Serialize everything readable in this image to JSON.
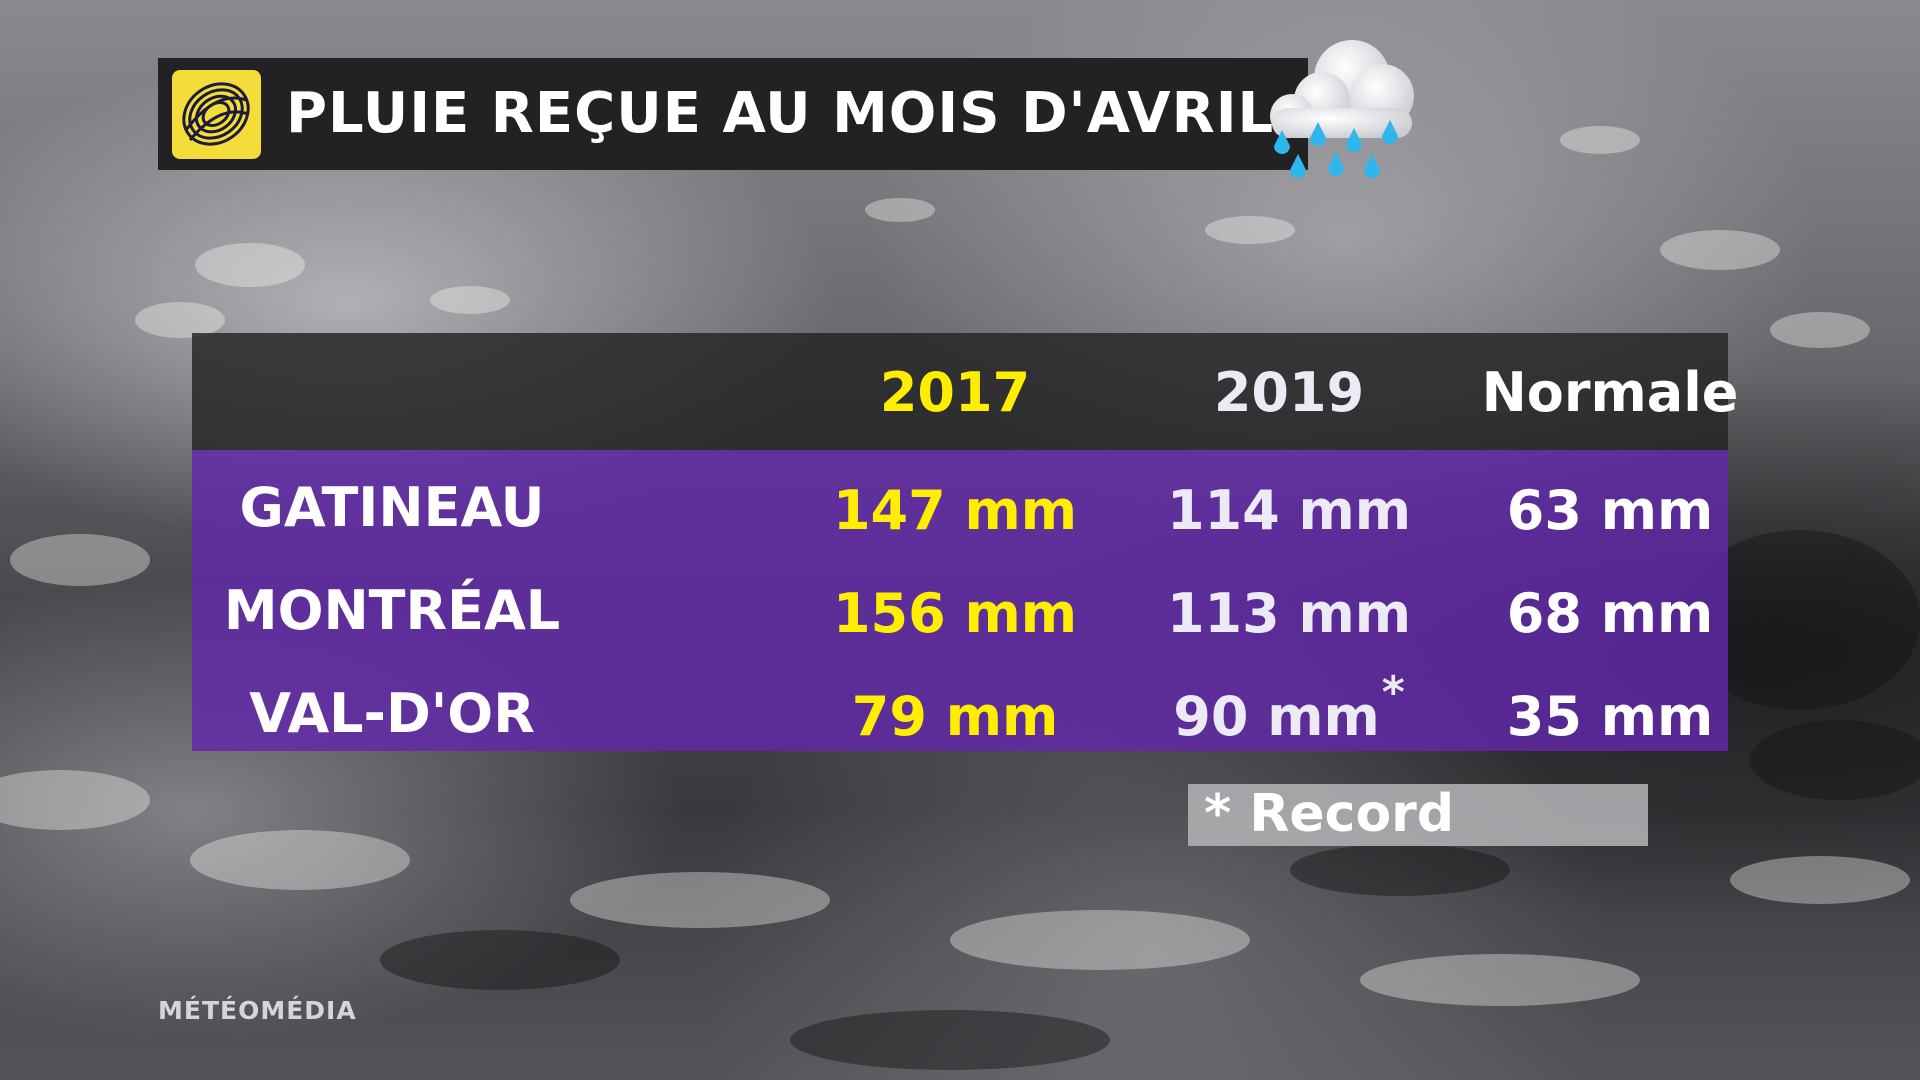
{
  "title": "PLUIE REÇUE AU MOIS D'AVRIL",
  "brand": "MÉTÉOMÉDIA",
  "legend": {
    "marker": "*",
    "label": "Record"
  },
  "colors": {
    "highlight_year": "#ffee00",
    "table_body": "#6228aa",
    "header": "#232326",
    "logo": "#f4dc3a"
  },
  "icons": {
    "logo": "meteomedia-logo-icon",
    "weather": "rain-cloud-icon"
  },
  "chart_data": {
    "type": "table",
    "title": "PLUIE REÇUE AU MOIS D'AVRIL",
    "columns": [
      "2017",
      "2019",
      "Normale"
    ],
    "rows": [
      {
        "city": "GATINEAU",
        "cells": [
          "147 mm",
          "114 mm",
          "63 mm"
        ],
        "values": [
          147,
          114,
          63
        ],
        "record": [
          false,
          false,
          false
        ]
      },
      {
        "city": "MONTRÉAL",
        "cells": [
          "156 mm",
          "113 mm",
          "68 mm"
        ],
        "values": [
          156,
          113,
          68
        ],
        "record": [
          false,
          false,
          false
        ]
      },
      {
        "city": "VAL-D'OR",
        "cells": [
          "79 mm",
          "90 mm",
          "35 mm"
        ],
        "values": [
          79,
          90,
          35
        ],
        "record": [
          false,
          true,
          false
        ]
      }
    ],
    "unit": "mm"
  }
}
